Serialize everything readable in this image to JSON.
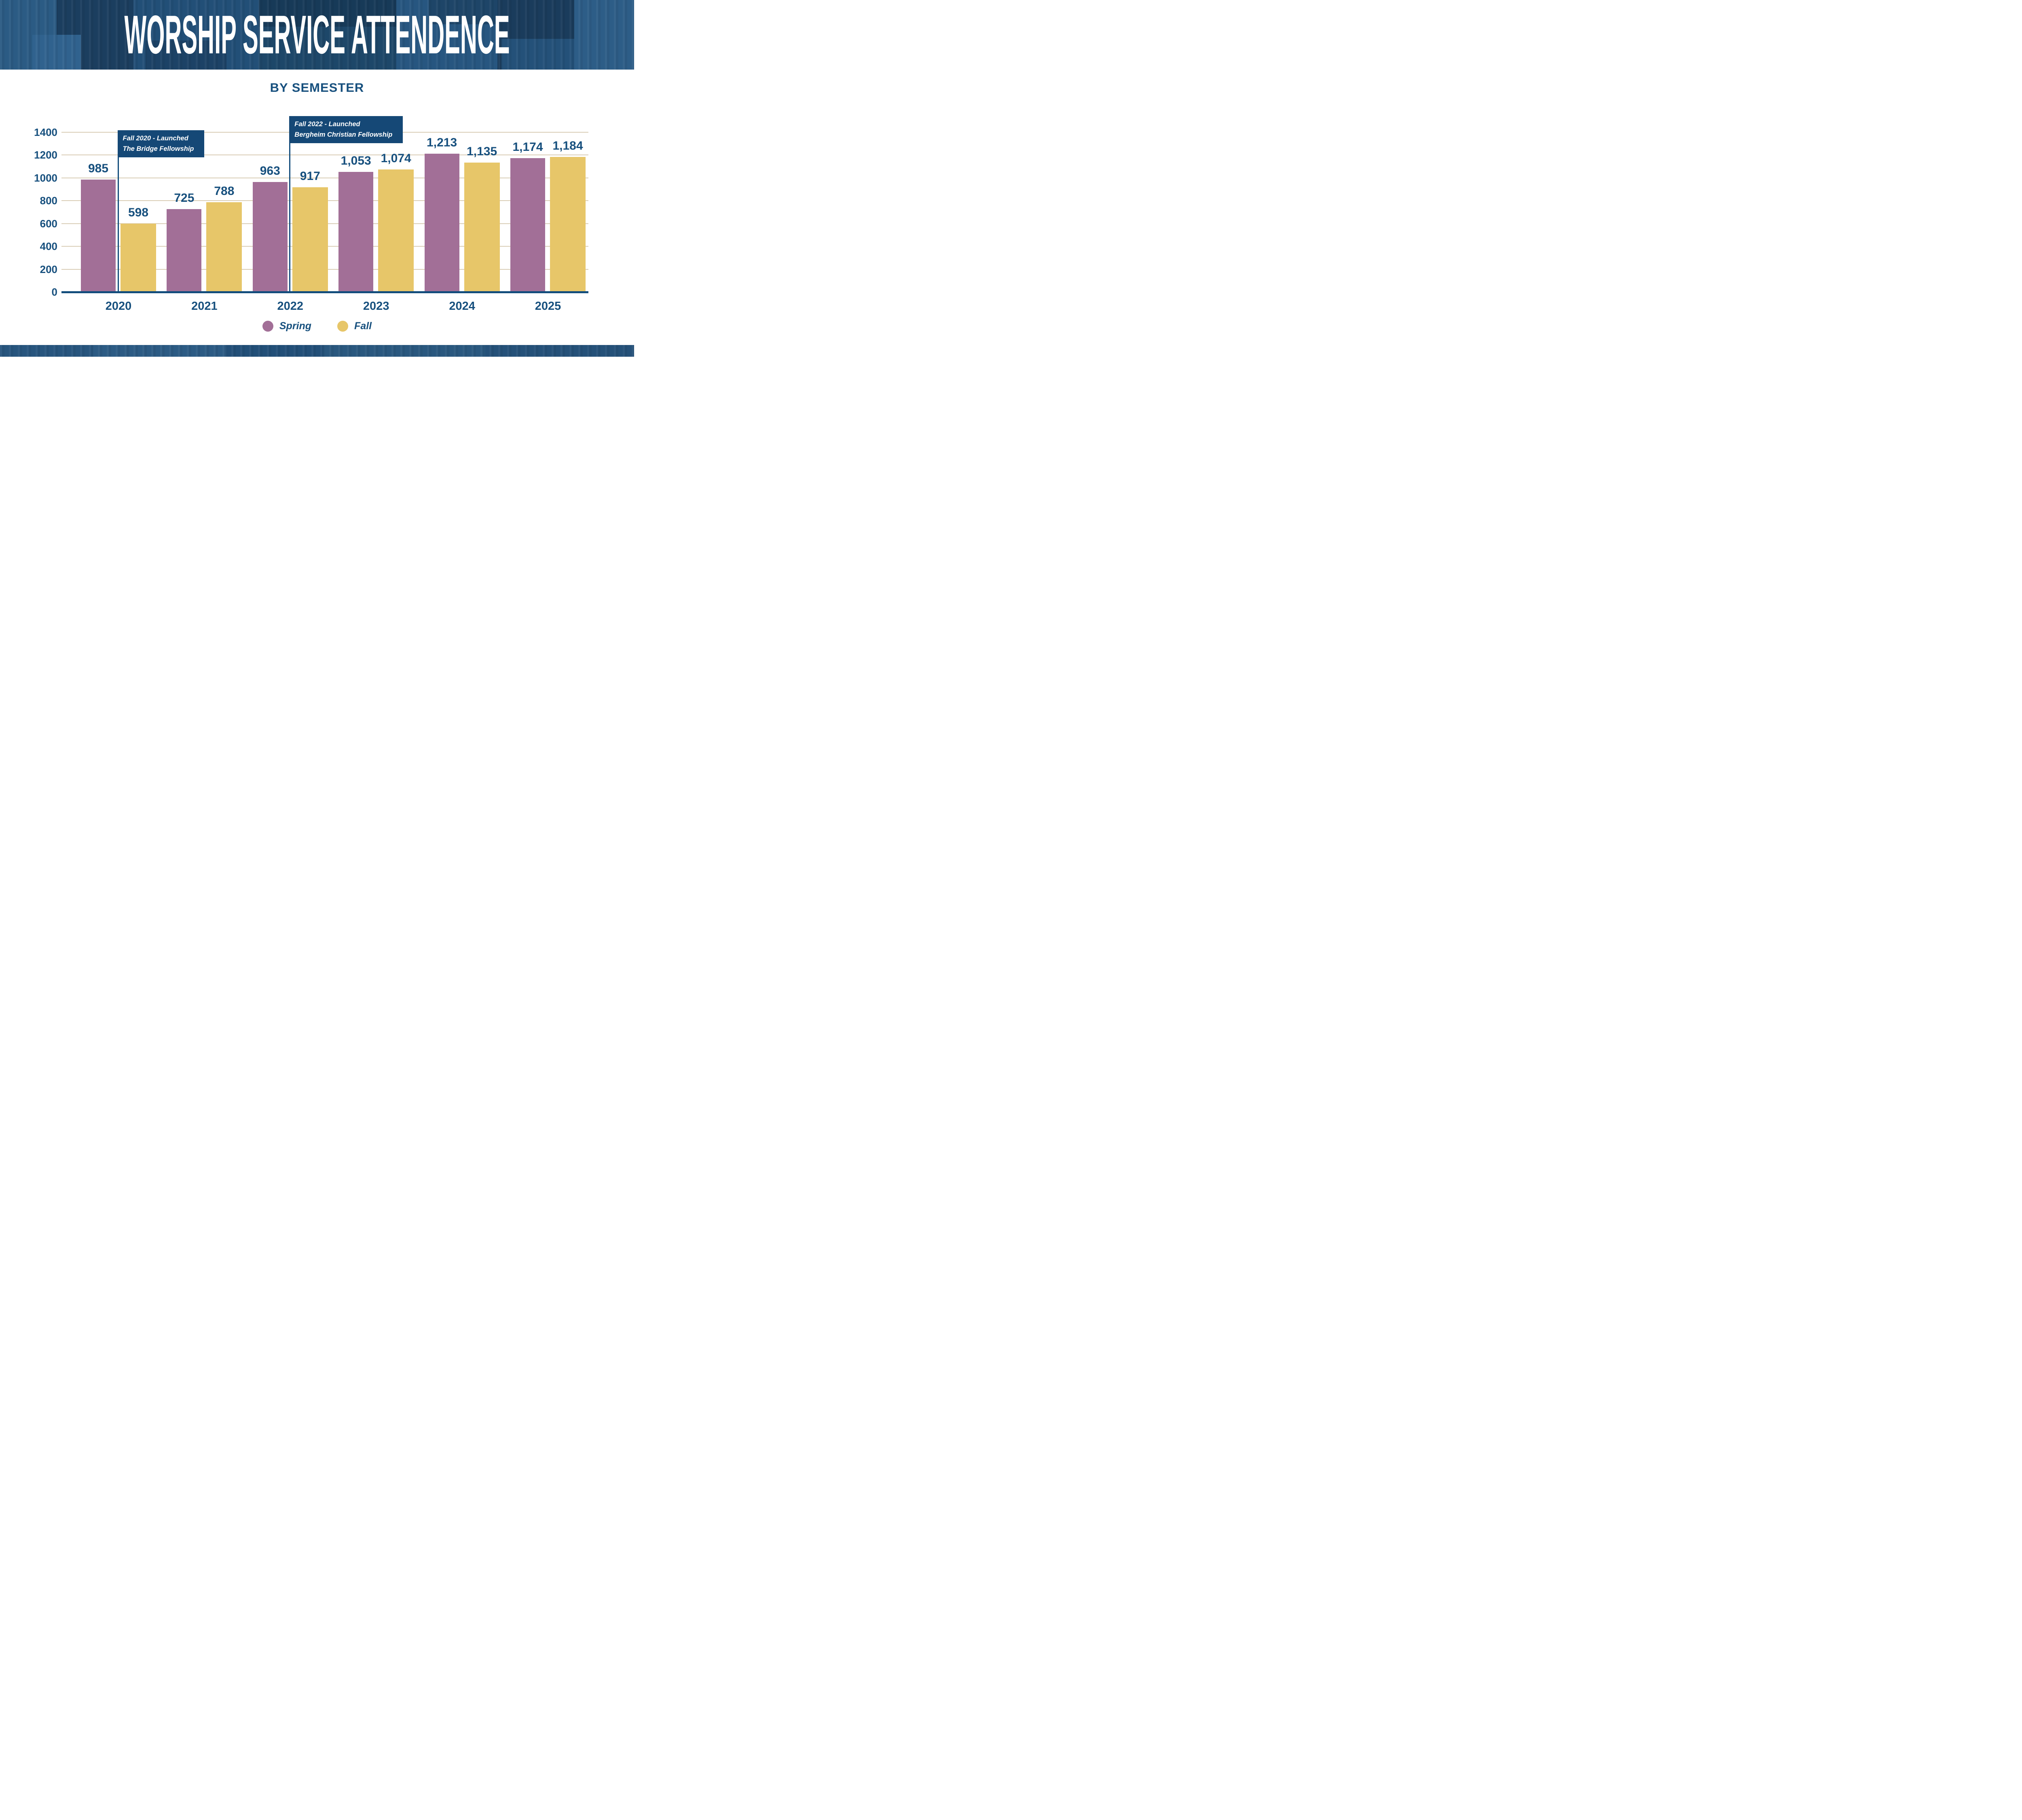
{
  "header": {
    "title": "WORSHIP SERVICE ATTENDENCE"
  },
  "chart_data": {
    "type": "bar",
    "title": "WORSHIP SERVICE ATTENDENCE",
    "subtitle": "BY SEMESTER",
    "categories": [
      "2020",
      "2021",
      "2022",
      "2023",
      "2024",
      "2025"
    ],
    "series": [
      {
        "name": "Spring",
        "color": "#a26f97",
        "values": [
          985,
          725,
          963,
          1053,
          1213,
          1174
        ],
        "labels": [
          "985",
          "725",
          "963",
          "1,053",
          "1,213",
          "1,174"
        ]
      },
      {
        "name": "Fall",
        "color": "#e7c669",
        "values": [
          598,
          788,
          917,
          1074,
          1135,
          1184
        ],
        "labels": [
          "598",
          "788",
          "917",
          "1,074",
          "1,135",
          "1,184"
        ]
      }
    ],
    "ylim": [
      0,
      1400
    ],
    "yticks": [
      1400,
      1200,
      1000,
      800,
      600,
      400,
      200,
      0
    ],
    "grid": true,
    "legend_position": "bottom-center",
    "annotations": [
      {
        "anchor": "Fall 2020",
        "text_lines": [
          "Fall 2020 - Launched",
          "The Bridge Fellowship"
        ]
      },
      {
        "anchor": "Fall 2022",
        "text_lines": [
          "Fall 2022 - Launched",
          "Bergheim Christian Fellowship"
        ]
      }
    ]
  },
  "legend": {
    "items": [
      {
        "label": "Spring",
        "color": "#a26f97"
      },
      {
        "label": "Fall",
        "color": "#e7c669"
      }
    ]
  },
  "colors": {
    "navy_text": "#17507e",
    "navy_deep": "#154876",
    "axis_line": "#134d7c",
    "gridline": "#d9cdb6",
    "header_base": "#1f4c74",
    "footer_base": "#26547d",
    "spring_bar": "#a26f97",
    "fall_bar": "#e7c669",
    "background": "#ffffff"
  }
}
